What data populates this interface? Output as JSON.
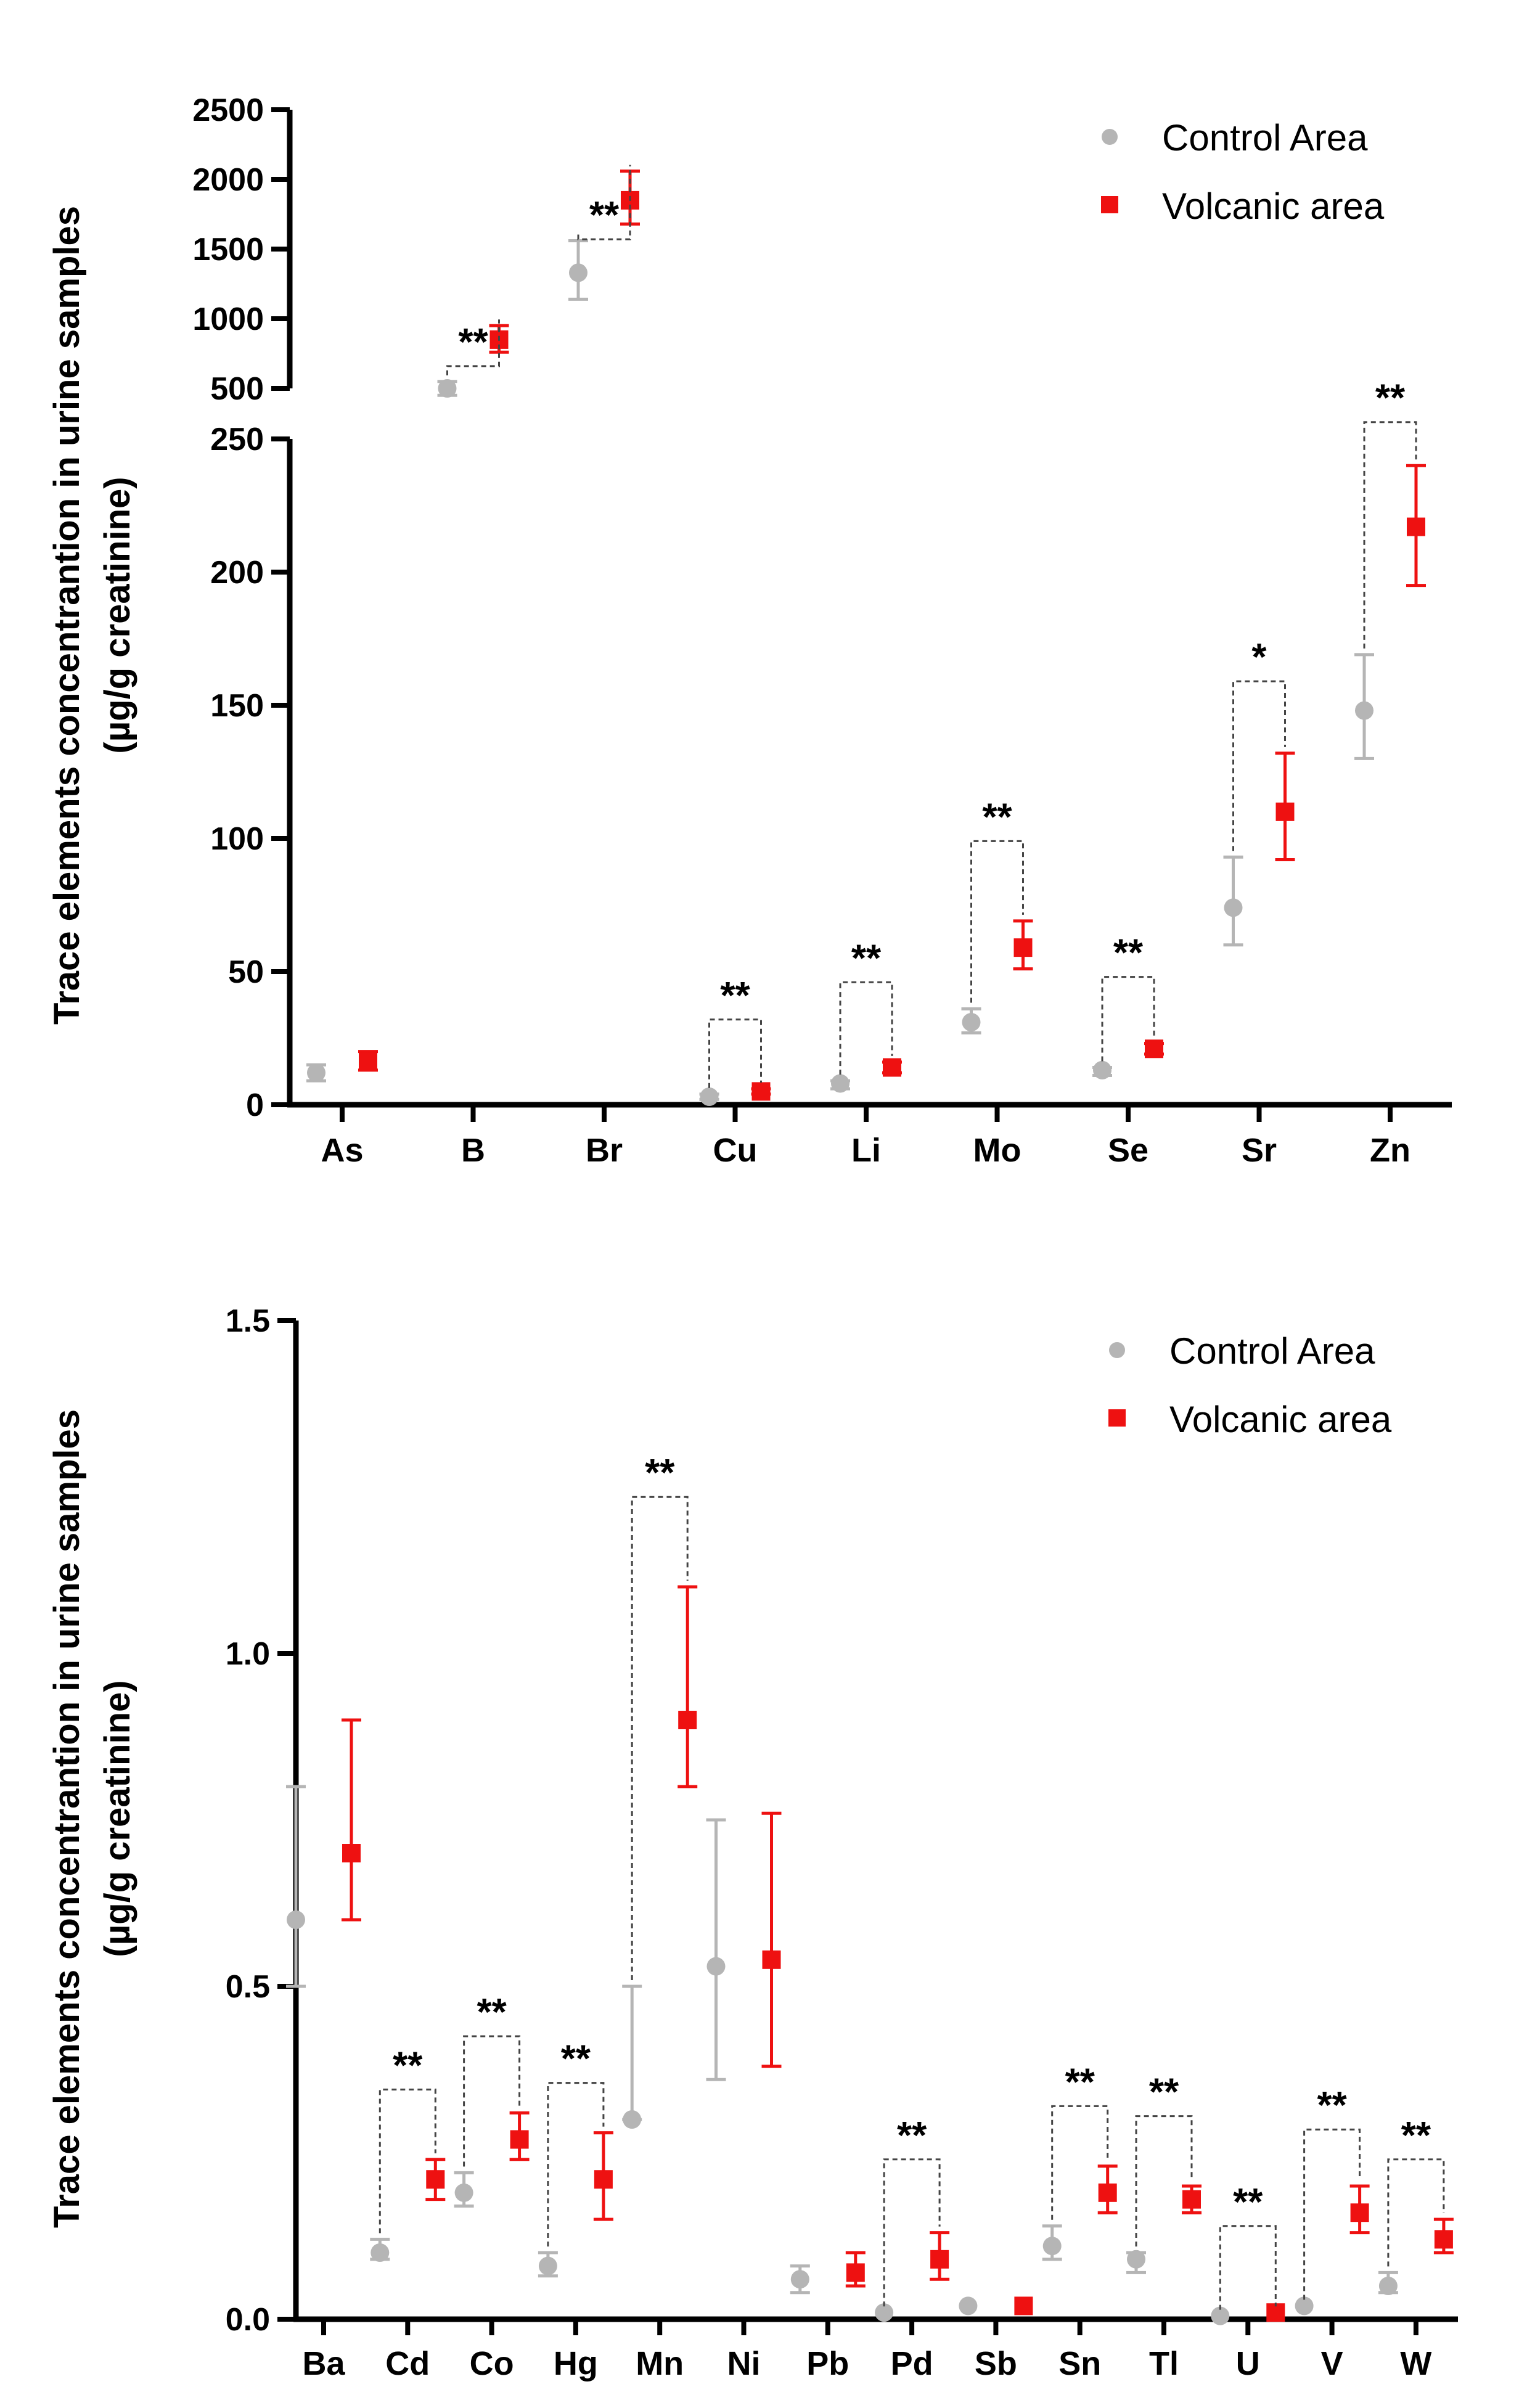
{
  "chart_data": [
    {
      "type": "scatter",
      "title": "",
      "ylabel": [
        "Trace elements concentrantion in urine samples",
        "(µg/g creatinine)"
      ],
      "xlabel": "",
      "y_axis_break": {
        "lower_range": [
          0,
          250
        ],
        "upper_range": [
          500,
          2500
        ]
      },
      "lower_ticks": [
        "0",
        "50",
        "100",
        "150",
        "200",
        "250"
      ],
      "upper_ticks": [
        "500",
        "1000",
        "1500",
        "2000",
        "2500"
      ],
      "categories": [
        "As",
        "B",
        "Br",
        "Cu",
        "Li",
        "Mo",
        "Se",
        "Sr",
        "Zn"
      ],
      "legend": [
        "Control Area",
        "Volcanic area"
      ],
      "legend_position": "top-right",
      "colors": {
        "control": "#b5b5b5",
        "volcanic": "#ee1111"
      },
      "series": [
        {
          "name": "Control Area",
          "values": [
            12,
            500,
            1330,
            3,
            8,
            31,
            13,
            74,
            148
          ],
          "err_low": [
            9,
            450,
            1140,
            2,
            6,
            27,
            11,
            60,
            130
          ],
          "err_high": [
            15,
            550,
            1560,
            4,
            9,
            36,
            14,
            93,
            169
          ]
        },
        {
          "name": "Volcanic area",
          "values": [
            16,
            850,
            1850,
            5,
            14,
            59,
            21,
            110,
            217
          ],
          "err_low": [
            13,
            760,
            1680,
            4,
            12,
            51,
            19,
            92,
            195
          ],
          "err_high": [
            20,
            950,
            2060,
            6,
            16,
            69,
            23,
            132,
            240
          ]
        }
      ],
      "significance": [
        {
          "category": "B",
          "label": "**",
          "y": 660
        },
        {
          "category": "Br",
          "label": "**",
          "y": 1570
        },
        {
          "category": "Cu",
          "label": "**",
          "y": 32
        },
        {
          "category": "Li",
          "label": "**",
          "y": 46
        },
        {
          "category": "Mo",
          "label": "**",
          "y": 99
        },
        {
          "category": "Se",
          "label": "**",
          "y": 48
        },
        {
          "category": "Sr",
          "label": "*",
          "y": 159
        },
        {
          "category": "Zn",
          "label": "**",
          "y": 258
        }
      ]
    },
    {
      "type": "scatter",
      "title": "",
      "ylabel": [
        "Trace elements concentrantion in urine samples",
        "(µg/g creatinine)"
      ],
      "xlabel": "",
      "ylim": [
        0,
        1.5
      ],
      "ticks": [
        "0.0",
        "0.5",
        "1.0",
        "1.5"
      ],
      "categories": [
        "Ba",
        "Cd",
        "Co",
        "Hg",
        "Mn",
        "Ni",
        "Pb",
        "Pd",
        "Sb",
        "Sn",
        "Tl",
        "U",
        "V",
        "W"
      ],
      "legend": [
        "Control Area",
        "Volcanic area"
      ],
      "legend_position": "top-right",
      "colors": {
        "control": "#b5b5b5",
        "volcanic": "#ee1111"
      },
      "series": [
        {
          "name": "Control Area",
          "values": [
            0.6,
            0.1,
            0.19,
            0.08,
            0.3,
            0.53,
            0.06,
            0.01,
            0.02,
            0.11,
            0.09,
            0.005,
            0.02,
            0.05
          ],
          "err_low": [
            0.5,
            0.09,
            0.17,
            0.065,
            0.3,
            0.36,
            0.04,
            0.01,
            0.02,
            0.09,
            0.07,
            0.005,
            0.02,
            0.04
          ],
          "err_high": [
            0.8,
            0.12,
            0.22,
            0.1,
            0.5,
            0.75,
            0.08,
            0.01,
            0.02,
            0.14,
            0.1,
            0.005,
            0.02,
            0.07
          ]
        },
        {
          "name": "Volcanic area",
          "values": [
            0.7,
            0.21,
            0.27,
            0.21,
            0.9,
            0.54,
            0.07,
            0.09,
            0.02,
            0.19,
            0.18,
            0.01,
            0.16,
            0.12
          ],
          "err_low": [
            0.6,
            0.18,
            0.24,
            0.15,
            0.8,
            0.38,
            0.05,
            0.06,
            0.02,
            0.16,
            0.16,
            0.01,
            0.13,
            0.1
          ],
          "err_high": [
            0.9,
            0.24,
            0.31,
            0.28,
            1.1,
            0.76,
            0.1,
            0.13,
            0.02,
            0.23,
            0.2,
            0.01,
            0.2,
            0.15
          ]
        }
      ],
      "significance": [
        {
          "category": "Cd",
          "label": "**",
          "y": 0.345
        },
        {
          "category": "Co",
          "label": "**",
          "y": 0.425
        },
        {
          "category": "Hg",
          "label": "**",
          "y": 0.355
        },
        {
          "category": "Mn",
          "label": "**",
          "y": 1.235
        },
        {
          "category": "Pd",
          "label": "**",
          "y": 0.24
        },
        {
          "category": "Sn",
          "label": "**",
          "y": 0.32
        },
        {
          "category": "Tl",
          "label": "**",
          "y": 0.305
        },
        {
          "category": "U",
          "label": "**",
          "y": 0.14
        },
        {
          "category": "V",
          "label": "**",
          "y": 0.285
        },
        {
          "category": "W",
          "label": "**",
          "y": 0.24
        }
      ]
    }
  ]
}
